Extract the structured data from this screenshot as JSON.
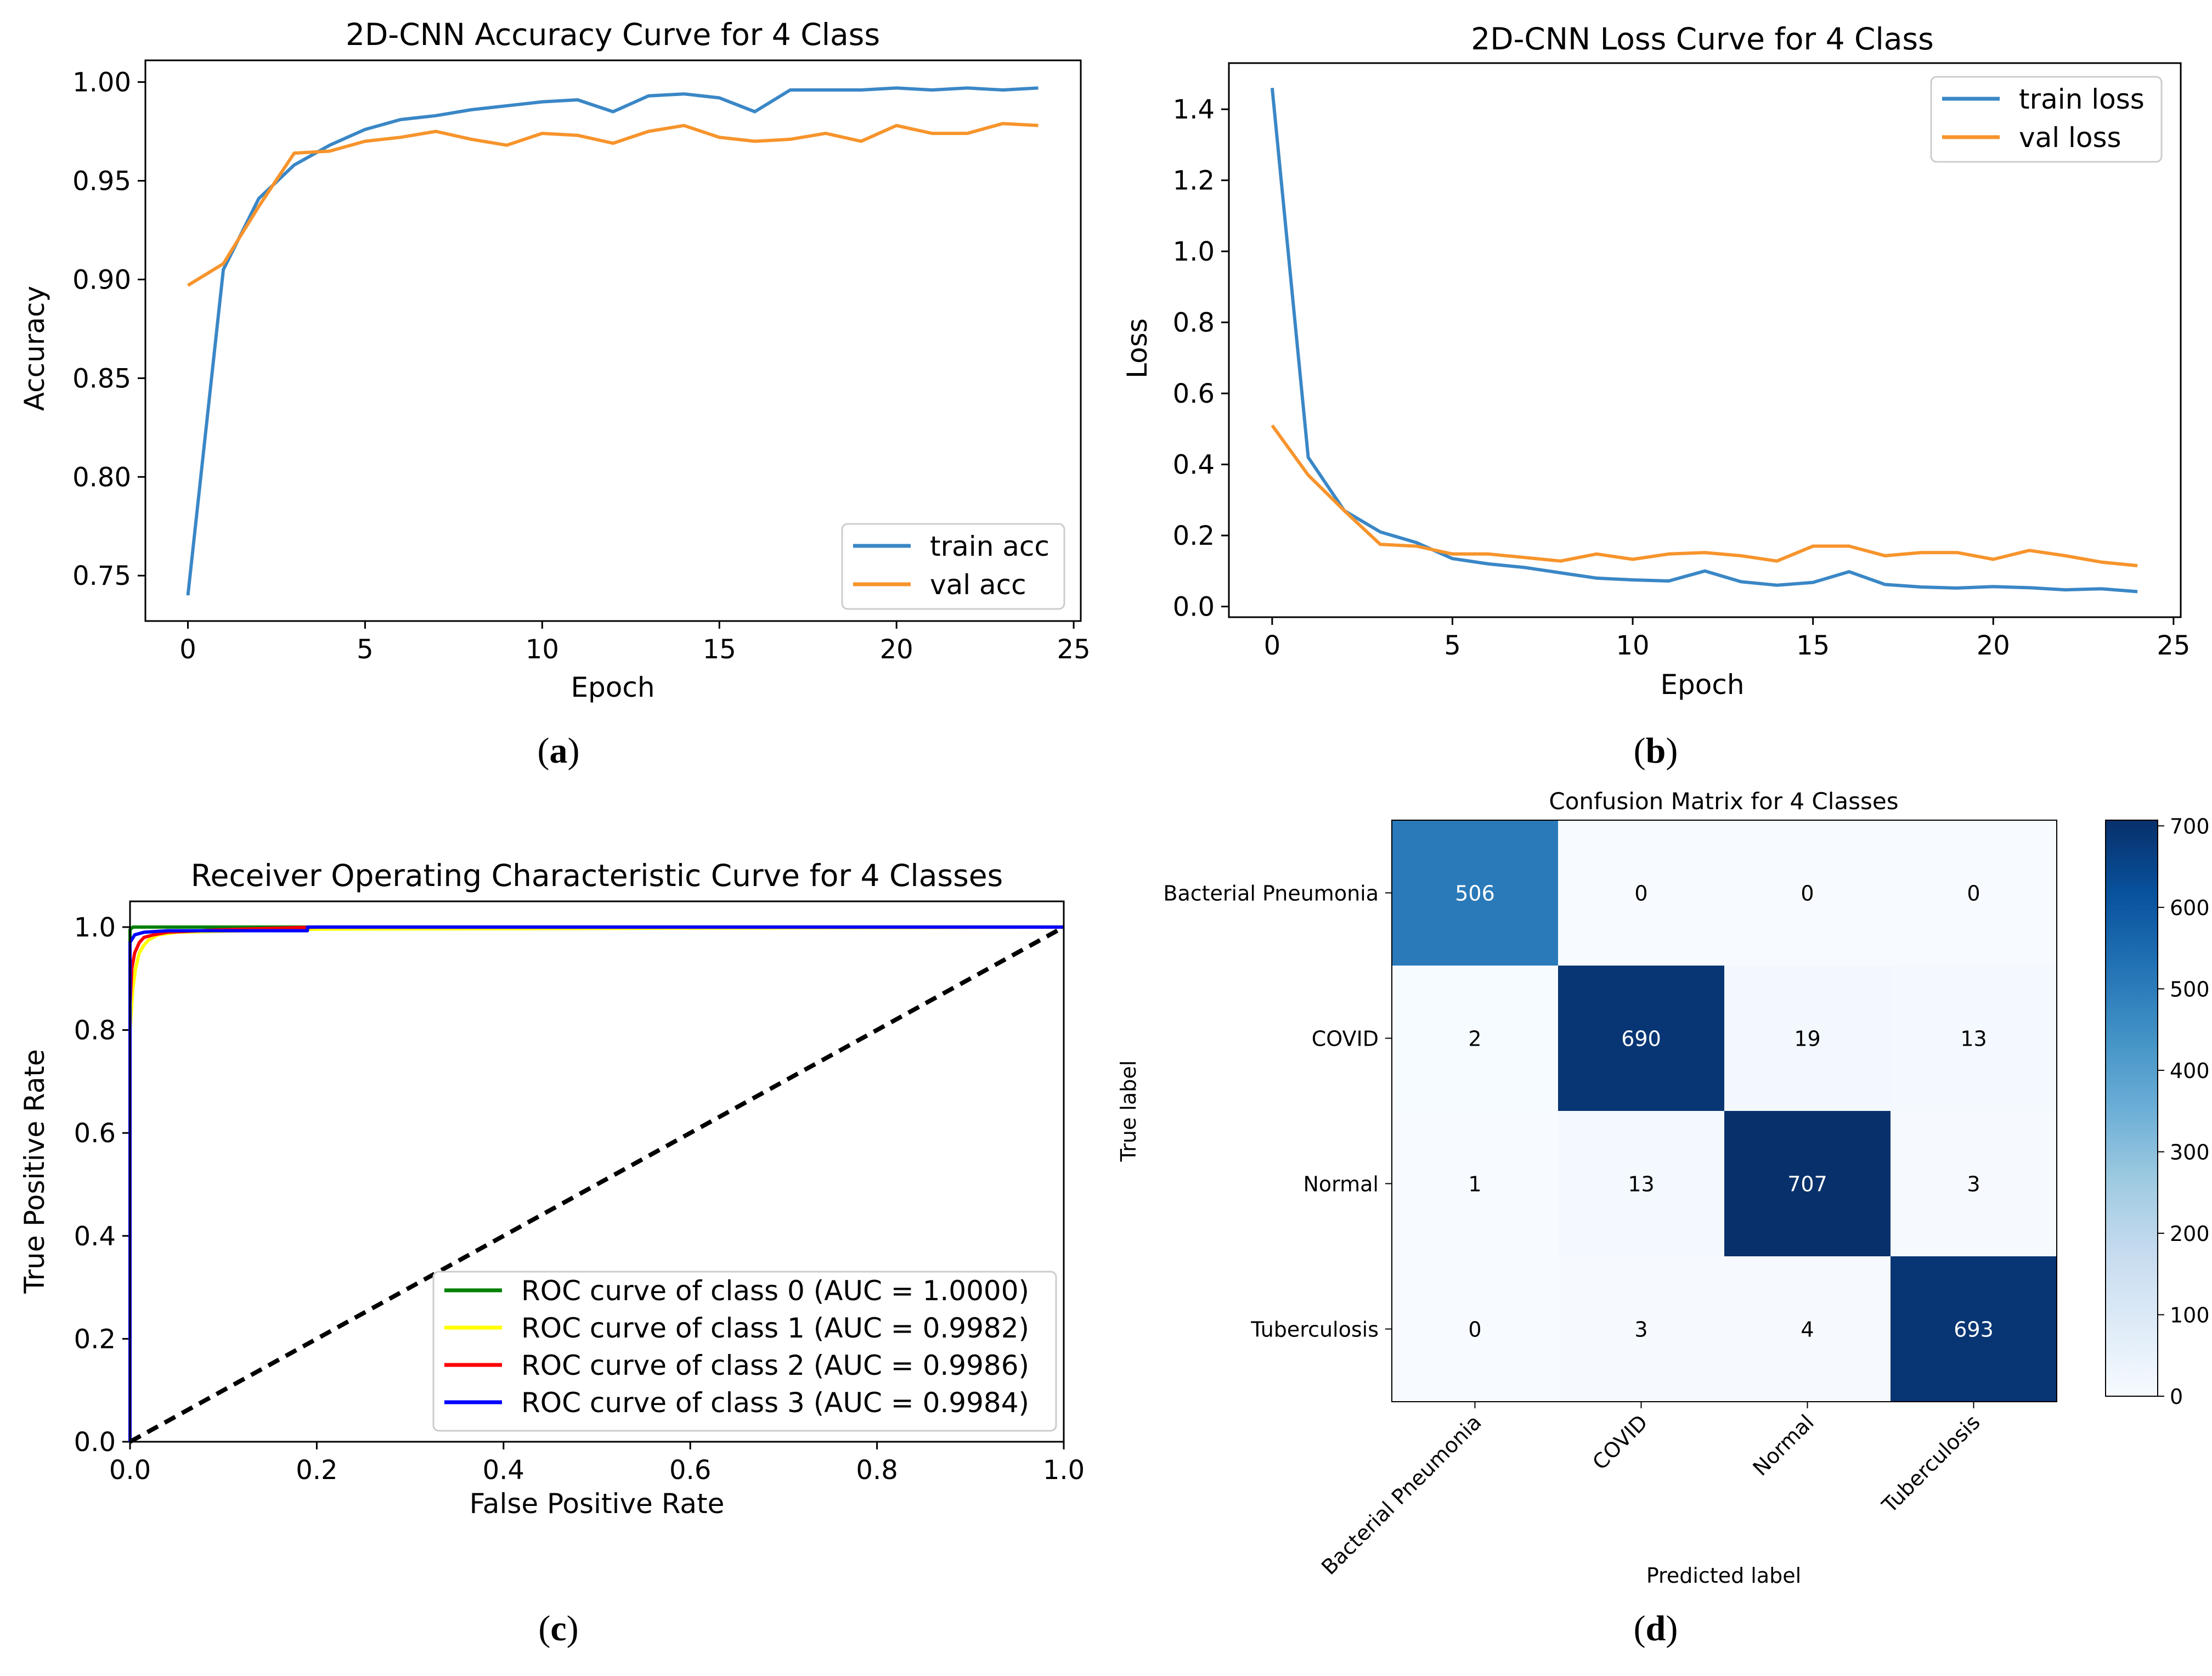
{
  "panel_labels": {
    "a": {
      "open": "(",
      "letter": "a",
      "close": ")"
    },
    "b": {
      "open": "(",
      "letter": "b",
      "close": ")"
    },
    "c": {
      "open": "(",
      "letter": "c",
      "close": ")"
    },
    "d": {
      "open": "(",
      "letter": "d",
      "close": ")"
    }
  },
  "colors": {
    "train": "#3a87c6",
    "val": "#f7942c",
    "class0": "#008000",
    "class1": "#ffff00",
    "class2": "#ff0000",
    "class3": "#0000ff",
    "diagonal": "#000000"
  },
  "chart_data": [
    {
      "id": "acc",
      "type": "line",
      "title": "2D-CNN Accuracy Curve for 4 Class",
      "xlabel": "Epoch",
      "ylabel": "Accuracy",
      "xlim": [
        -1.2,
        25.2
      ],
      "ylim": [
        0.727,
        1.011
      ],
      "xticks": [
        0,
        5,
        10,
        15,
        20,
        25
      ],
      "xtick_labels": [
        "0",
        "5",
        "10",
        "15",
        "20",
        "25"
      ],
      "yticks": [
        0.75,
        0.8,
        0.85,
        0.9,
        0.95,
        1.0
      ],
      "ytick_labels": [
        "0.75",
        "0.80",
        "0.85",
        "0.90",
        "0.95",
        "1.00"
      ],
      "grid": false,
      "legend_position": "lower-right",
      "x": [
        0,
        1,
        2,
        3,
        4,
        5,
        6,
        7,
        8,
        9,
        10,
        11,
        12,
        13,
        14,
        15,
        16,
        17,
        18,
        19,
        20,
        21,
        22,
        23,
        24
      ],
      "series": [
        {
          "key": "train",
          "name": "train acc",
          "values": [
            0.74,
            0.905,
            0.941,
            0.958,
            0.968,
            0.976,
            0.981,
            0.983,
            0.986,
            0.988,
            0.99,
            0.991,
            0.985,
            0.993,
            0.994,
            0.992,
            0.985,
            0.996,
            0.996,
            0.996,
            0.997,
            0.996,
            0.997,
            0.996,
            0.997
          ]
        },
        {
          "key": "val",
          "name": "val acc",
          "values": [
            0.897,
            0.908,
            0.937,
            0.964,
            0.965,
            0.97,
            0.972,
            0.975,
            0.971,
            0.968,
            0.974,
            0.973,
            0.969,
            0.975,
            0.978,
            0.972,
            0.97,
            0.971,
            0.974,
            0.97,
            0.978,
            0.974,
            0.974,
            0.979,
            0.978
          ]
        }
      ]
    },
    {
      "id": "loss",
      "type": "line",
      "title": "2D-CNN Loss Curve for 4 Class",
      "xlabel": "Epoch",
      "ylabel": "Loss",
      "xlim": [
        -1.2,
        25.2
      ],
      "ylim": [
        -0.03,
        1.53
      ],
      "xticks": [
        0,
        5,
        10,
        15,
        20,
        25
      ],
      "xtick_labels": [
        "0",
        "5",
        "10",
        "15",
        "20",
        "25"
      ],
      "yticks": [
        0.0,
        0.2,
        0.4,
        0.6,
        0.8,
        1.0,
        1.2,
        1.4
      ],
      "ytick_labels": [
        "0.0",
        "0.2",
        "0.4",
        "0.6",
        "0.8",
        "1.0",
        "1.2",
        "1.4"
      ],
      "grid": false,
      "legend_position": "upper-right",
      "x": [
        0,
        1,
        2,
        3,
        4,
        5,
        6,
        7,
        8,
        9,
        10,
        11,
        12,
        13,
        14,
        15,
        16,
        17,
        18,
        19,
        20,
        21,
        22,
        23,
        24
      ],
      "series": [
        {
          "key": "train",
          "name": "train loss",
          "values": [
            1.46,
            0.42,
            0.27,
            0.21,
            0.18,
            0.135,
            0.12,
            0.11,
            0.095,
            0.08,
            0.075,
            0.072,
            0.1,
            0.07,
            0.06,
            0.068,
            0.098,
            0.062,
            0.055,
            0.052,
            0.056,
            0.053,
            0.047,
            0.05,
            0.042
          ]
        },
        {
          "key": "val",
          "name": "val loss",
          "values": [
            0.51,
            0.37,
            0.27,
            0.175,
            0.17,
            0.148,
            0.148,
            0.138,
            0.128,
            0.148,
            0.133,
            0.148,
            0.152,
            0.143,
            0.128,
            0.17,
            0.17,
            0.143,
            0.152,
            0.152,
            0.133,
            0.158,
            0.143,
            0.125,
            0.115
          ]
        }
      ]
    },
    {
      "id": "roc",
      "type": "line",
      "title": "Receiver Operating Characteristic Curve for 4 Classes",
      "xlabel": "False Positive Rate",
      "ylabel": "True Positive Rate",
      "xlim": [
        0.0,
        1.0
      ],
      "ylim": [
        0.0,
        1.05
      ],
      "xticks": [
        0.0,
        0.2,
        0.4,
        0.6,
        0.8,
        1.0
      ],
      "xtick_labels": [
        "0.0",
        "0.2",
        "0.4",
        "0.6",
        "0.8",
        "1.0"
      ],
      "yticks": [
        0.0,
        0.2,
        0.4,
        0.6,
        0.8,
        1.0
      ],
      "ytick_labels": [
        "0.0",
        "0.2",
        "0.4",
        "0.6",
        "0.8",
        "1.0"
      ],
      "grid": false,
      "legend_position": "lower-right",
      "series": [
        {
          "key": "class0",
          "name": "ROC curve of class 0 (AUC = 1.0000)",
          "x": [
            0.0,
            0.0,
            0.003,
            1.0
          ],
          "y": [
            0.0,
            0.995,
            1.0,
            1.0
          ]
        },
        {
          "key": "class1",
          "name": "ROC curve of class 1 (AUC = 0.9982)",
          "x": [
            0.0,
            0.0,
            0.003,
            0.006,
            0.01,
            0.015,
            0.02,
            0.03,
            0.05,
            0.2,
            1.0
          ],
          "y": [
            0.0,
            0.8,
            0.88,
            0.92,
            0.95,
            0.965,
            0.975,
            0.985,
            0.99,
            0.996,
            1.0
          ]
        },
        {
          "key": "class2",
          "name": "ROC curve of class 2 (AUC = 0.9986)",
          "x": [
            0.0,
            0.0,
            0.002,
            0.005,
            0.01,
            0.015,
            0.025,
            0.04,
            0.1,
            0.2,
            1.0
          ],
          "y": [
            0.0,
            0.85,
            0.92,
            0.95,
            0.97,
            0.98,
            0.985,
            0.99,
            0.995,
            1.0,
            1.0
          ]
        },
        {
          "key": "class3",
          "name": "ROC curve of class 3 (AUC = 0.9984)",
          "x": [
            0.0,
            0.0,
            0.005,
            0.015,
            0.04,
            0.19,
            0.19,
            1.0
          ],
          "y": [
            0.0,
            0.97,
            0.985,
            0.99,
            0.993,
            0.993,
            1.0,
            1.0
          ]
        },
        {
          "key": "diagonal",
          "name": "",
          "style": "dashed",
          "x": [
            0.0,
            1.0
          ],
          "y": [
            0.0,
            1.0
          ]
        }
      ]
    },
    {
      "id": "cm",
      "type": "heatmap",
      "title": "Confusion Matrix for 4 Classes",
      "xlabel": "Predicted label",
      "ylabel": "True label",
      "row_labels": [
        "Bacterial Pneumonia",
        "COVID",
        "Normal",
        "Tuberculosis"
      ],
      "col_labels": [
        "Bacterial Pneumonia",
        "COVID",
        "Normal",
        "Tuberculosis"
      ],
      "values": [
        [
          506,
          0,
          0,
          0
        ],
        [
          2,
          690,
          19,
          13
        ],
        [
          1,
          13,
          707,
          3
        ],
        [
          0,
          3,
          4,
          693
        ]
      ],
      "vmin": 0,
      "vmax": 707,
      "colorbar_ticks": [
        0,
        100,
        200,
        300,
        400,
        500,
        600,
        700
      ],
      "colorbar_tick_labels": [
        "0",
        "100",
        "200",
        "300",
        "400",
        "500",
        "600",
        "700"
      ],
      "colormap": "Blues"
    }
  ]
}
